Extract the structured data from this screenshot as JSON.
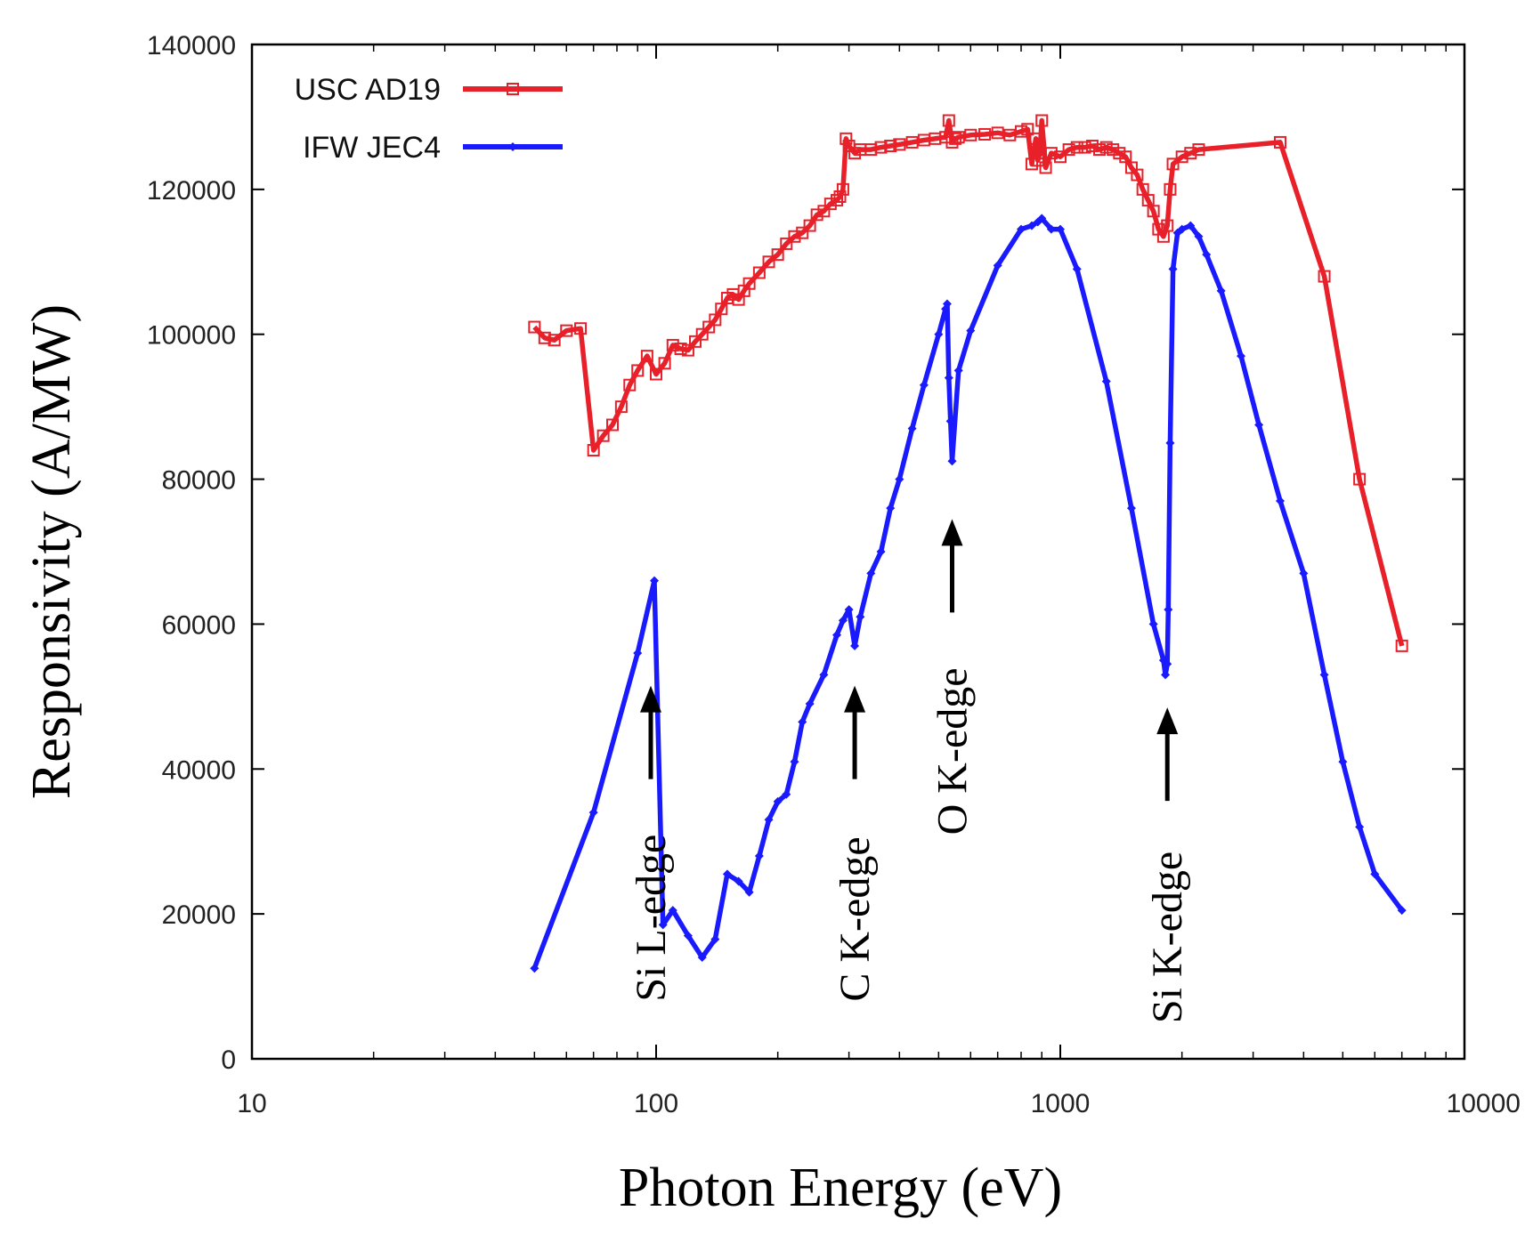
{
  "chart_data": {
    "type": "line",
    "title": "",
    "xlabel": "Photon Energy (eV)",
    "ylabel": "Responsivity (A/MW)",
    "xscale": "log",
    "xlim": [
      10,
      10000
    ],
    "ylim": [
      0,
      140000
    ],
    "xticks": [
      10,
      100,
      1000,
      10000
    ],
    "xtick_labels": [
      "10",
      "100",
      "1000",
      "10000"
    ],
    "yticks": [
      0,
      20000,
      40000,
      60000,
      80000,
      100000,
      120000,
      140000
    ],
    "ytick_labels": [
      "0",
      "20000",
      "40000",
      "60000",
      "80000",
      "100000",
      "120000",
      "140000"
    ],
    "legend_position": "top-left",
    "series": [
      {
        "name": "USC AD19",
        "color": "#e8202a",
        "marker": "square",
        "x": [
          50,
          53,
          56,
          60,
          65,
          70,
          74,
          78,
          82,
          86,
          90,
          95,
          100,
          105,
          110,
          115,
          120,
          125,
          130,
          135,
          140,
          145,
          150,
          155,
          160,
          165,
          170,
          180,
          190,
          200,
          210,
          220,
          230,
          240,
          250,
          260,
          270,
          280,
          285,
          290,
          295,
          300,
          310,
          320,
          340,
          360,
          380,
          400,
          430,
          460,
          490,
          520,
          530,
          540,
          550,
          560,
          600,
          650,
          700,
          750,
          800,
          830,
          850,
          870,
          880,
          890,
          900,
          920,
          950,
          1000,
          1050,
          1100,
          1150,
          1200,
          1250,
          1300,
          1350,
          1400,
          1450,
          1500,
          1550,
          1600,
          1650,
          1700,
          1750,
          1800,
          1840,
          1870,
          1900,
          2000,
          2100,
          2200,
          3500,
          4500,
          5500,
          7000
        ],
        "values": [
          101000,
          99500,
          99200,
          100500,
          100800,
          84000,
          86000,
          87500,
          90000,
          93000,
          95000,
          97000,
          94500,
          96000,
          98500,
          98000,
          97800,
          99000,
          100000,
          101000,
          102000,
          103500,
          105000,
          105500,
          104800,
          106000,
          107000,
          108500,
          110000,
          111000,
          112500,
          113500,
          114000,
          115000,
          116500,
          117000,
          118000,
          118500,
          119000,
          120000,
          127000,
          126000,
          125000,
          125500,
          125500,
          125800,
          126000,
          126200,
          126500,
          126800,
          127000,
          127200,
          129500,
          126500,
          127000,
          127200,
          127500,
          127600,
          127800,
          127500,
          128000,
          128300,
          123500,
          127000,
          124000,
          125000,
          129500,
          123000,
          125000,
          124500,
          125500,
          125800,
          125800,
          126000,
          125500,
          125800,
          125500,
          125000,
          124500,
          123000,
          122000,
          120000,
          118500,
          117000,
          114500,
          113500,
          115000,
          120000,
          123500,
          124500,
          125000,
          125500,
          126500,
          108000,
          80000,
          57000
        ]
      },
      {
        "name": "IFW JEC4",
        "color": "#1a1aff",
        "marker": "diamond",
        "x": [
          50,
          70,
          90,
          99,
          104,
          110,
          120,
          130,
          140,
          150,
          160,
          170,
          180,
          190,
          200,
          210,
          220,
          230,
          240,
          260,
          280,
          290,
          300,
          310,
          320,
          340,
          360,
          380,
          400,
          430,
          460,
          500,
          520,
          525,
          530,
          535,
          540,
          560,
          600,
          700,
          800,
          850,
          880,
          900,
          950,
          1000,
          1100,
          1300,
          1500,
          1700,
          1800,
          1820,
          1840,
          1850,
          1870,
          1900,
          1950,
          2000,
          2100,
          2200,
          2300,
          2500,
          2800,
          3100,
          3500,
          4000,
          4500,
          5000,
          5500,
          6000,
          7000
        ],
        "values": [
          12500,
          34000,
          56000,
          66000,
          18500,
          20500,
          17000,
          14000,
          16500,
          25500,
          24500,
          23000,
          28000,
          33000,
          35500,
          36500,
          41000,
          46500,
          49000,
          53000,
          58500,
          60500,
          62000,
          57000,
          61000,
          67000,
          70000,
          76000,
          80000,
          87000,
          93000,
          100000,
          103500,
          104200,
          94000,
          88000,
          82500,
          95000,
          100500,
          109500,
          114500,
          115000,
          115500,
          116000,
          114500,
          114500,
          109000,
          93500,
          76000,
          60000,
          55000,
          53000,
          54500,
          62000,
          85000,
          109000,
          114000,
          114500,
          115000,
          113500,
          111000,
          106000,
          97000,
          87500,
          77000,
          67000,
          53000,
          41000,
          32000,
          25500,
          20500
        ]
      }
    ],
    "annotations": [
      {
        "text": "Si L-edge",
        "x": 97,
        "y_arrow_tip": 51500
      },
      {
        "text": "C K-edge",
        "x": 310,
        "y_arrow_tip": 51500
      },
      {
        "text": "O K-edge",
        "x": 540,
        "y_arrow_tip": 74500
      },
      {
        "text": "Si K-edge",
        "x": 1840,
        "y_arrow_tip": 48500
      }
    ]
  }
}
